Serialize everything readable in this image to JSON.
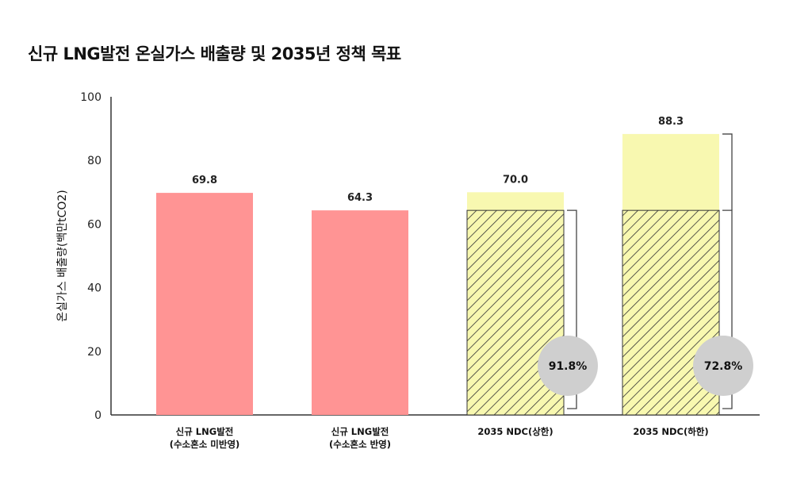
{
  "title": "신규 LNG발전 온실가스 배출량 및 2035년 정책 목표",
  "chart_data": {
    "type": "bar",
    "title": "신규 LNG발전 온실가스 배출량 및 2035년 정책 목표",
    "ylabel": "온실가스 배출량(백만tCO2)",
    "xlabel": "",
    "ylim": [
      0,
      100
    ],
    "yticks": [
      0,
      20,
      40,
      60,
      80,
      100
    ],
    "grid": false,
    "categories": [
      [
        "신규 LNG발전",
        "(수소혼소 미반영)"
      ],
      [
        "신규 LNG발전",
        "(수소혼소 반영)"
      ],
      [
        "2035 NDC(상한)"
      ],
      [
        "2035 NDC(하한)"
      ]
    ],
    "bars": [
      {
        "value": 69.8,
        "label": "69.8",
        "color": "#ff9494",
        "stack": null
      },
      {
        "value": 64.3,
        "label": "64.3",
        "color": "#ff9494",
        "stack": null
      },
      {
        "value": 70.0,
        "label": "70.0",
        "color": "#f8f8b0",
        "stack": {
          "hatched_value": 64.3,
          "hatch_color": "#f8f8b0",
          "percent": "91.8%"
        }
      },
      {
        "value": 88.3,
        "label": "88.3",
        "color": "#f8f8b0",
        "stack": {
          "hatched_value": 64.3,
          "hatch_color": "#f8f8b0",
          "percent": "72.8%"
        }
      }
    ],
    "colors": {
      "lng": "#ff9494",
      "ndc": "#f8f8b0",
      "badge": "#cfcfcf"
    }
  }
}
